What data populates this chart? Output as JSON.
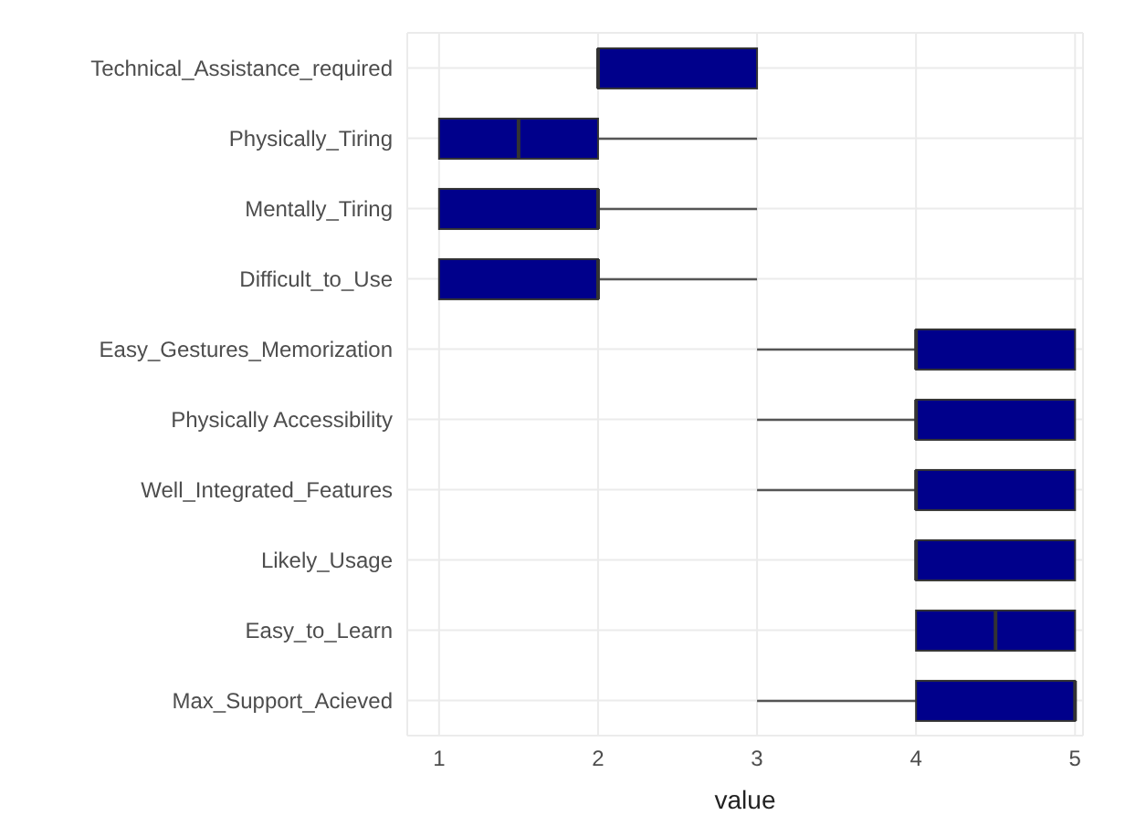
{
  "chart_data": {
    "type": "box",
    "orientation": "horizontal",
    "xlabel": "value",
    "categories": [
      "Technical_Assistance_required",
      "Physically_Tiring",
      "Mentally_Tiring",
      "Difficult_to_Use",
      "Easy_Gestures_Memorization",
      "Physically Accessibility",
      "Well_Integrated_Features",
      "Likely_Usage",
      "Easy_to_Learn",
      "Max_Support_Acieved"
    ],
    "color": "#00008b",
    "boxes": [
      {
        "low": 2,
        "q1": 2,
        "median": 2,
        "q3": 3,
        "high": 3
      },
      {
        "low": 1,
        "q1": 1,
        "median": 1.5,
        "q3": 2,
        "high": 3
      },
      {
        "low": 1,
        "q1": 1,
        "median": 2,
        "q3": 2,
        "high": 3
      },
      {
        "low": 1,
        "q1": 1,
        "median": 2,
        "q3": 2,
        "high": 3
      },
      {
        "low": 3,
        "q1": 4,
        "median": 4,
        "q3": 5,
        "high": 5
      },
      {
        "low": 3,
        "q1": 4,
        "median": 4,
        "q3": 5,
        "high": 5
      },
      {
        "low": 3,
        "q1": 4,
        "median": 4,
        "q3": 5,
        "high": 5
      },
      {
        "low": 4,
        "q1": 4,
        "median": 4,
        "q3": 5,
        "high": 5
      },
      {
        "low": 4,
        "q1": 4,
        "median": 4.5,
        "q3": 5,
        "high": 5
      },
      {
        "low": 3,
        "q1": 4,
        "median": 5,
        "q3": 5,
        "high": 5
      }
    ],
    "xlim": [
      0.8,
      5.05
    ],
    "xticks": [
      1,
      2,
      3,
      4,
      5
    ],
    "grid": true
  }
}
